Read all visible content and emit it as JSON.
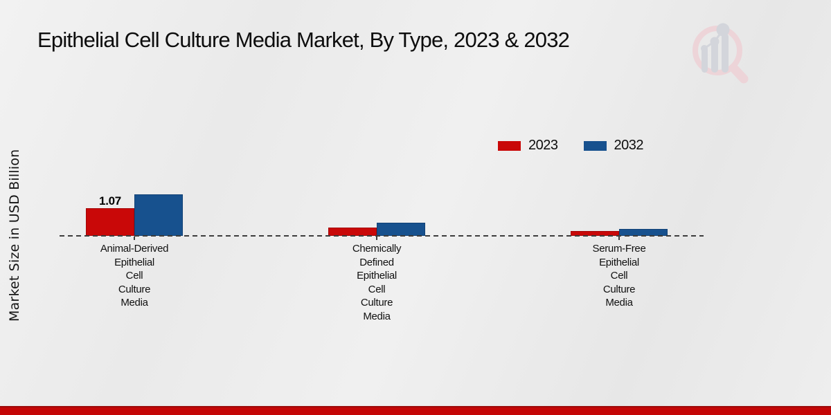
{
  "header": {
    "title": "Epithelial Cell Culture Media Market, By Type, 2023 & 2032"
  },
  "y_axis": {
    "label": "Market Size in USD Billion"
  },
  "legend": {
    "items": [
      {
        "label": "2023",
        "color": "#c90808"
      },
      {
        "label": "2032",
        "color": "#17518e"
      }
    ]
  },
  "logo": {
    "name": "market-research-magnifier-growth-logo",
    "ring_color": "#edd4d8",
    "bars_color": "#d3d5db"
  },
  "footer": {
    "bar_color": "#c40606"
  },
  "chart_data": {
    "type": "bar",
    "title": "Epithelial Cell Culture Media Market, By Type, 2023 & 2032",
    "xlabel": "",
    "ylabel": "Market Size in USD Billion",
    "categories": [
      "Animal-Derived Epithelial Cell Culture Media",
      "Chemically Defined Epithelial Cell Culture Media",
      "Serum-Free Epithelial Cell Culture Media"
    ],
    "category_tick_lines": [
      [
        "Animal-Derived",
        "Epithelial",
        "Cell",
        "Culture",
        "Media"
      ],
      [
        "Chemically",
        "Defined",
        "Epithelial",
        "Cell",
        "Culture",
        "Media"
      ],
      [
        "Serum-Free",
        "Epithelial",
        "Cell",
        "Culture",
        "Media"
      ]
    ],
    "series": [
      {
        "name": "2023",
        "color": "#c90808",
        "values": [
          1.07,
          0.31,
          0.19
        ]
      },
      {
        "name": "2032",
        "color": "#17518e",
        "values": [
          1.6,
          0.51,
          0.28
        ]
      }
    ],
    "value_labels": [
      {
        "series_index": 0,
        "category_index": 0,
        "text": "1.07"
      }
    ],
    "ylim": [
      0,
      1.8
    ],
    "grid": false,
    "baseline_style": "dashed zero line",
    "legend_position": "upper right inside plot"
  }
}
